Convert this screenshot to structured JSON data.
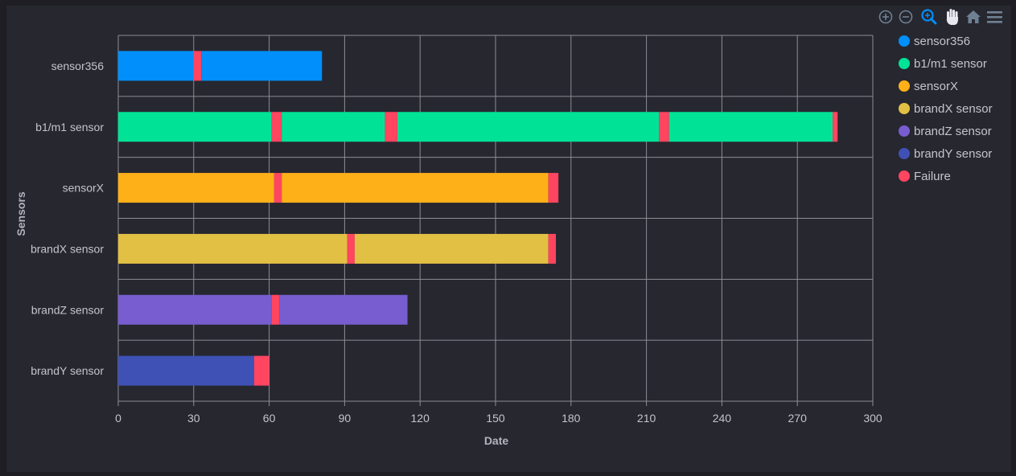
{
  "chart_data": {
    "type": "bar",
    "orientation": "horizontal",
    "stacked": true,
    "title": "",
    "xlabel": "Date",
    "ylabel": "Sensors",
    "xlim": [
      0,
      300
    ],
    "xticks": [
      0,
      30,
      60,
      90,
      120,
      150,
      180,
      210,
      240,
      270,
      300
    ],
    "grid": true,
    "legend_position": "right",
    "categories": [
      "sensor356",
      "b1/m1 sensor",
      "sensorX",
      "brandX sensor",
      "brandZ sensor",
      "brandY sensor"
    ],
    "failure_name": "Failure",
    "failure_color": "#ff4560",
    "series": [
      {
        "name": "sensor356",
        "color": "#008ffb",
        "segments": [
          {
            "start": 0,
            "end": 30,
            "failure": false
          },
          {
            "start": 30,
            "end": 33,
            "failure": true
          },
          {
            "start": 33,
            "end": 81,
            "failure": false
          }
        ]
      },
      {
        "name": "b1/m1 sensor",
        "color": "#00e396",
        "segments": [
          {
            "start": 0,
            "end": 61,
            "failure": false
          },
          {
            "start": 61,
            "end": 65,
            "failure": true
          },
          {
            "start": 65,
            "end": 106,
            "failure": false
          },
          {
            "start": 106,
            "end": 111,
            "failure": true
          },
          {
            "start": 111,
            "end": 215,
            "failure": false
          },
          {
            "start": 215,
            "end": 219,
            "failure": true
          },
          {
            "start": 219,
            "end": 284,
            "failure": false
          },
          {
            "start": 284,
            "end": 286,
            "failure": true
          }
        ]
      },
      {
        "name": "sensorX",
        "color": "#feb019",
        "segments": [
          {
            "start": 0,
            "end": 62,
            "failure": false
          },
          {
            "start": 62,
            "end": 65,
            "failure": true
          },
          {
            "start": 65,
            "end": 171,
            "failure": false
          },
          {
            "start": 171,
            "end": 175,
            "failure": true
          }
        ]
      },
      {
        "name": "brandX sensor",
        "color": "#e2c044",
        "segments": [
          {
            "start": 0,
            "end": 91,
            "failure": false
          },
          {
            "start": 91,
            "end": 94,
            "failure": true
          },
          {
            "start": 94,
            "end": 171,
            "failure": false
          },
          {
            "start": 171,
            "end": 174,
            "failure": true
          }
        ]
      },
      {
        "name": "brandZ sensor",
        "color": "#775dd0",
        "segments": [
          {
            "start": 0,
            "end": 61,
            "failure": false
          },
          {
            "start": 61,
            "end": 64,
            "failure": true
          },
          {
            "start": 64,
            "end": 115,
            "failure": false
          }
        ]
      },
      {
        "name": "brandY sensor",
        "color": "#3f51b5",
        "segments": [
          {
            "start": 0,
            "end": 54,
            "failure": false
          },
          {
            "start": 54,
            "end": 60,
            "failure": true
          }
        ]
      }
    ],
    "legend": [
      {
        "label": "sensor356",
        "color": "#008ffb"
      },
      {
        "label": "b1/m1 sensor",
        "color": "#00e396"
      },
      {
        "label": "sensorX",
        "color": "#feb019"
      },
      {
        "label": "brandX sensor",
        "color": "#e2c044"
      },
      {
        "label": "brandZ sensor",
        "color": "#775dd0"
      },
      {
        "label": "brandY sensor",
        "color": "#3f51b5"
      },
      {
        "label": "Failure",
        "color": "#ff4560"
      }
    ]
  },
  "toolbar": {
    "icons": [
      "zoom-in-icon",
      "zoom-out-icon",
      "selection-zoom-icon",
      "pan-hand-icon",
      "reset-home-icon",
      "menu-icon"
    ],
    "active_color": "#008ffb",
    "idle_color": "#6e8192"
  }
}
